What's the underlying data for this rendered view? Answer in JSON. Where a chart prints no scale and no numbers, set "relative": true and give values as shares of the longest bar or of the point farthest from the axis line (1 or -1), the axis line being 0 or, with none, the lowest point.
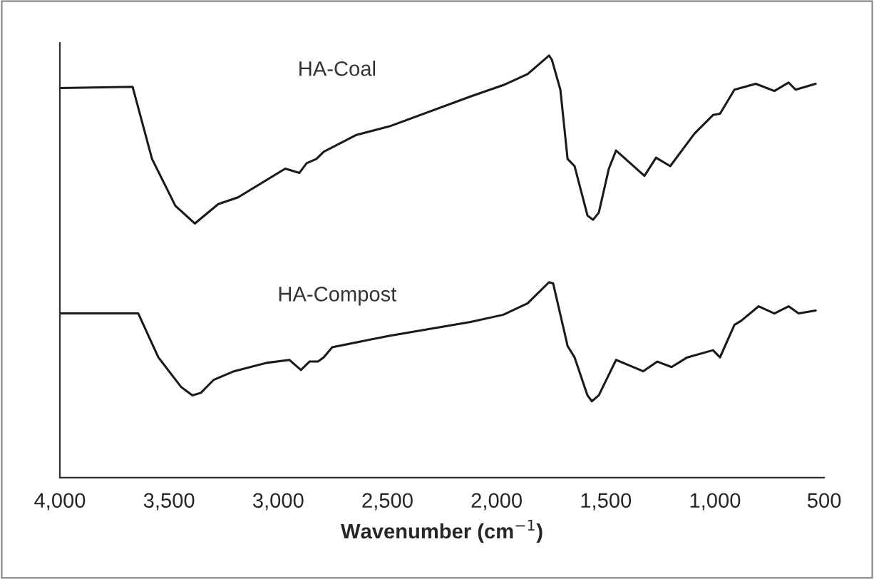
{
  "chart_data": {
    "type": "line",
    "relative": true,
    "xlabel": "Wavenumber (cm$^{−1}$)",
    "xlim": [
      4000,
      500
    ],
    "xticks": [
      {
        "value": 4000,
        "label": "4,000"
      },
      {
        "value": 3500,
        "label": "3,500"
      },
      {
        "value": 3000,
        "label": "3,000"
      },
      {
        "value": 2500,
        "label": "2,500"
      },
      {
        "value": 2000,
        "label": "2,000"
      },
      {
        "value": 1500,
        "label": "1,500"
      },
      {
        "value": 1000,
        "label": "1,000"
      },
      {
        "value": 500,
        "label": "500"
      }
    ],
    "grid": false,
    "legend": false,
    "marker": "none",
    "line_style": "solid",
    "series": [
      {
        "name": "HA-Coal",
        "color": "#1a1a1a",
        "x": [
          4000,
          3667,
          3578,
          3471,
          3382,
          3275,
          3184,
          2968,
          2903,
          2870,
          2825,
          2792,
          2642,
          2492,
          2119,
          1969,
          1858,
          1760,
          1747,
          1708,
          1675,
          1643,
          1584,
          1558,
          1532,
          1486,
          1453,
          1323,
          1270,
          1205,
          1094,
          1009,
          977,
          911,
          813,
          728,
          663,
          631,
          539
        ],
        "values": [
          0.923,
          0.926,
          0.755,
          0.644,
          0.602,
          0.648,
          0.664,
          0.732,
          0.722,
          0.745,
          0.755,
          0.772,
          0.812,
          0.832,
          0.903,
          0.93,
          0.956,
          1.0,
          0.99,
          0.919,
          0.755,
          0.738,
          0.621,
          0.611,
          0.628,
          0.732,
          0.775,
          0.715,
          0.758,
          0.738,
          0.815,
          0.859,
          0.862,
          0.919,
          0.933,
          0.916,
          0.936,
          0.919,
          0.933
        ]
      },
      {
        "name": "HA-Compost",
        "color": "#1a1a1a",
        "x": [
          4000,
          3641,
          3549,
          3445,
          3393,
          3354,
          3295,
          3203,
          3053,
          2949,
          2896,
          2857,
          2818,
          2792,
          2753,
          2492,
          2119,
          1969,
          1858,
          1760,
          1741,
          1675,
          1643,
          1584,
          1564,
          1532,
          1453,
          1329,
          1264,
          1199,
          1127,
          1009,
          977,
          911,
          879,
          800,
          728,
          663,
          617,
          539
        ],
        "values": [
          0.389,
          0.389,
          0.285,
          0.215,
          0.195,
          0.201,
          0.232,
          0.252,
          0.272,
          0.279,
          0.255,
          0.275,
          0.275,
          0.285,
          0.309,
          0.336,
          0.369,
          0.386,
          0.413,
          0.463,
          0.46,
          0.312,
          0.285,
          0.195,
          0.181,
          0.195,
          0.279,
          0.252,
          0.275,
          0.262,
          0.285,
          0.302,
          0.285,
          0.362,
          0.372,
          0.406,
          0.389,
          0.406,
          0.389,
          0.396
        ]
      }
    ]
  }
}
